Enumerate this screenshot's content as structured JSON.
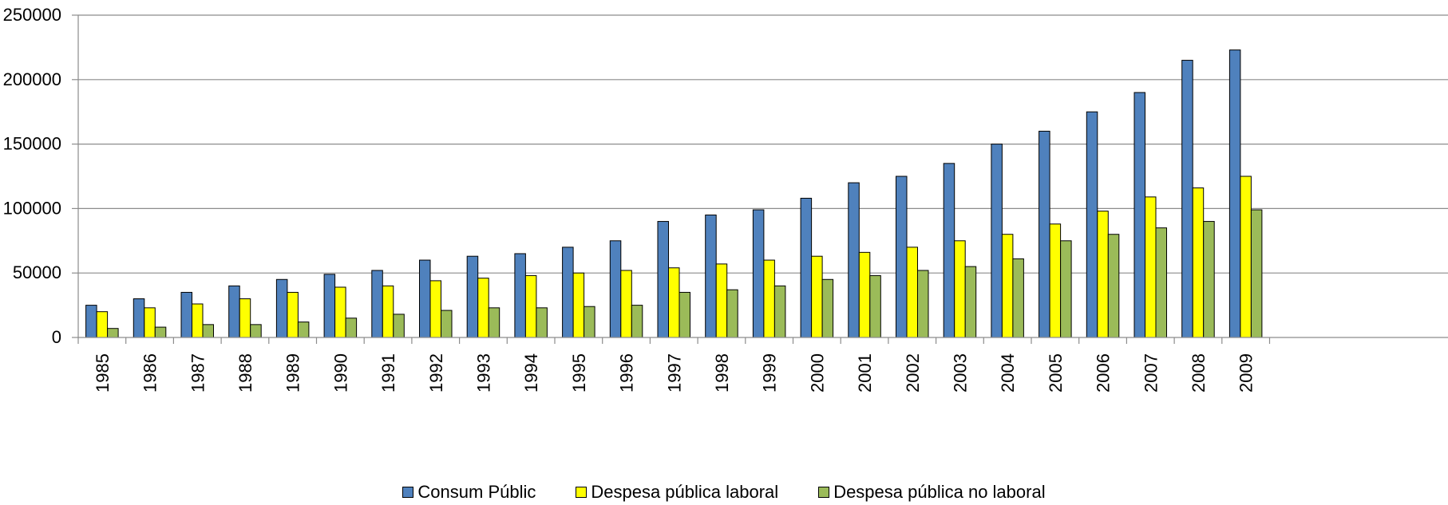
{
  "chart_data": {
    "type": "bar",
    "title": "",
    "xlabel": "",
    "ylabel": "",
    "ylim": [
      0,
      250000
    ],
    "yticks": [
      0,
      50000,
      100000,
      150000,
      200000,
      250000
    ],
    "ytick_labels": [
      "0",
      "50000",
      "100000",
      "150000",
      "200000",
      "250000"
    ],
    "grid": true,
    "legend_position": "bottom",
    "x_tick_rotation": "vertical",
    "categories": [
      "1985",
      "1986",
      "1987",
      "1988",
      "1989",
      "1990",
      "1991",
      "1992",
      "1993",
      "1994",
      "1995",
      "1996",
      "1997",
      "1998",
      "1999",
      "2000",
      "2001",
      "2002",
      "2003",
      "2004",
      "2005",
      "2006",
      "2007",
      "2008",
      "2009"
    ],
    "series": [
      {
        "name": "Consum Públic",
        "color": "#4F81BD",
        "values": [
          25000,
          30000,
          35000,
          40000,
          45000,
          49000,
          52000,
          60000,
          63000,
          65000,
          70000,
          75000,
          90000,
          95000,
          99000,
          108000,
          120000,
          125000,
          135000,
          150000,
          160000,
          175000,
          190000,
          215000,
          223000
        ]
      },
      {
        "name": "Despesa pública laboral",
        "color": "#FFFF00",
        "values": [
          20000,
          23000,
          26000,
          30000,
          35000,
          39000,
          40000,
          44000,
          46000,
          48000,
          50000,
          52000,
          54000,
          57000,
          60000,
          63000,
          66000,
          70000,
          75000,
          80000,
          88000,
          98000,
          109000,
          116000,
          125000
        ]
      },
      {
        "name": "Despesa pública no laboral",
        "color": "#9BBB59",
        "values": [
          7000,
          8000,
          10000,
          10000,
          12000,
          15000,
          18000,
          21000,
          23000,
          23000,
          24000,
          25000,
          35000,
          37000,
          40000,
          45000,
          48000,
          52000,
          55000,
          61000,
          75000,
          80000,
          85000,
          90000,
          99000
        ]
      }
    ]
  }
}
